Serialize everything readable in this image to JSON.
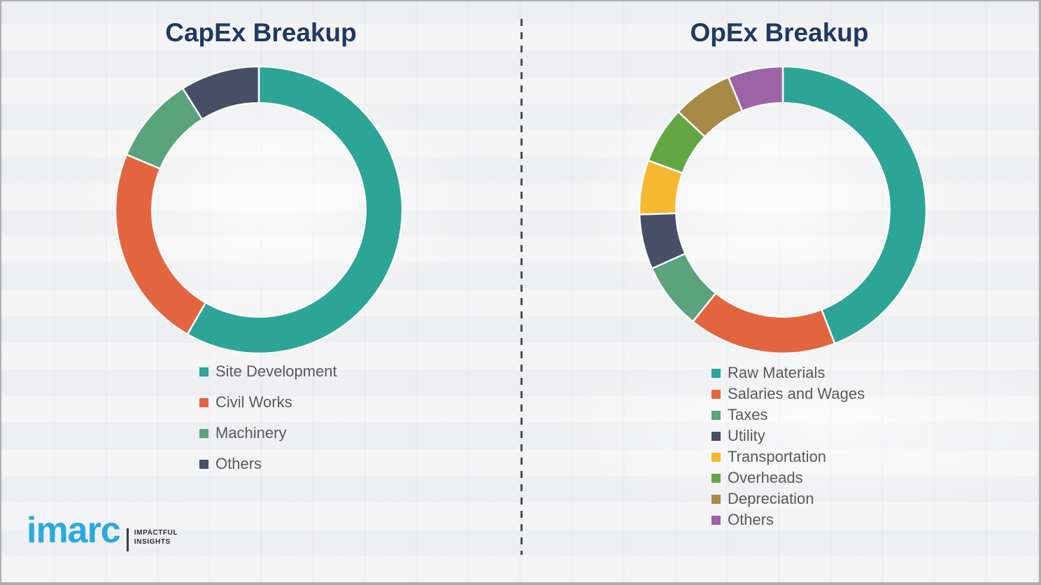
{
  "page": {
    "background_color": "#f2f2f4",
    "border_color": "#aeaeae",
    "divider_color": "#4d4d4d",
    "title_color": "#1f3864",
    "legend_text_color": "#595959"
  },
  "chart_data": [
    {
      "type": "pie",
      "subtype": "donut",
      "title": "CapEx Breakup",
      "categories": [
        "Site Development",
        "Civil Works",
        "Machinery",
        "Others"
      ],
      "values": [
        58.3,
        23.0,
        9.8,
        8.9
      ],
      "colors": [
        "#2ca496",
        "#e2653f",
        "#5aa37d",
        "#474f66"
      ],
      "start_angle_deg": 0,
      "direction": "clockwise",
      "inner_radius_ratio": 0.745,
      "legend_position": "below-left",
      "data_labels": "none"
    },
    {
      "type": "pie",
      "subtype": "donut",
      "title": "OpEx Breakup",
      "categories": [
        "Raw Materials",
        "Salaries and Wages",
        "Taxes",
        "Utility",
        "Transportation",
        "Overheads",
        "Depreciation",
        "Others"
      ],
      "values": [
        44.1,
        16.7,
        7.5,
        6.2,
        6.1,
        6.4,
        6.8,
        6.2
      ],
      "colors": [
        "#2ca496",
        "#e2653f",
        "#5aa37d",
        "#474f66",
        "#f6b831",
        "#62a744",
        "#a68a46",
        "#9c64a6"
      ],
      "start_angle_deg": 0,
      "direction": "clockwise",
      "inner_radius_ratio": 0.745,
      "legend_position": "below-left",
      "data_labels": "none"
    }
  ],
  "branding": {
    "logo_text": "imarc",
    "logo_color": "#29a9e1",
    "tagline_line1": "IMPACTFUL",
    "tagline_line2": "INSIGHTS"
  }
}
